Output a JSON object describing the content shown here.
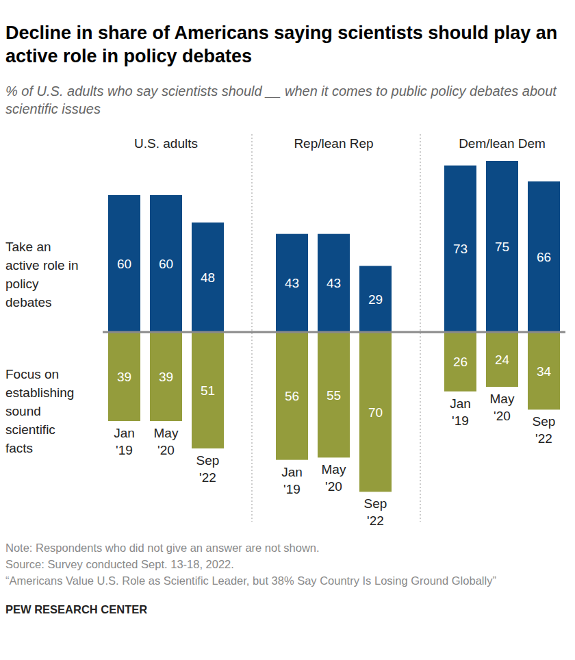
{
  "chart_data": {
    "type": "bar",
    "title": "Decline in share of Americans saying scientists should play an active role in policy debates",
    "subtitle": "% of U.S. adults who say scientists should __ when it comes to public policy debates about scientific issues",
    "panels": [
      "U.S. adults",
      "Rep/lean Rep",
      "Dem/lean Dem"
    ],
    "categories": [
      "Jan '19",
      "May '20",
      "Sep '22",
      "Jan '19",
      "May '20",
      "Sep '22",
      "Jan '19",
      "May '20",
      "Sep '22"
    ],
    "series": [
      {
        "name": "Take an active role in policy debates",
        "color": "#0c4a85",
        "values": [
          60,
          60,
          48,
          43,
          43,
          29,
          73,
          75,
          66
        ]
      },
      {
        "name": "Focus on establishing sound scientific facts",
        "color": "#949c3c",
        "values": [
          39,
          39,
          51,
          56,
          55,
          70,
          26,
          24,
          34
        ]
      }
    ],
    "ylim": [
      0,
      80
    ],
    "data_labels": true,
    "tick_labels": "x",
    "notes": [
      "Note: Respondents who did not give an answer are not shown.",
      "Source: Survey conducted Sept. 13-18, 2022.",
      "“Americans Value U.S. Role as Scientific Leader, but 38% Say Country Is Losing Ground Globally”"
    ],
    "credit": "PEW RESEARCH CENTER"
  }
}
